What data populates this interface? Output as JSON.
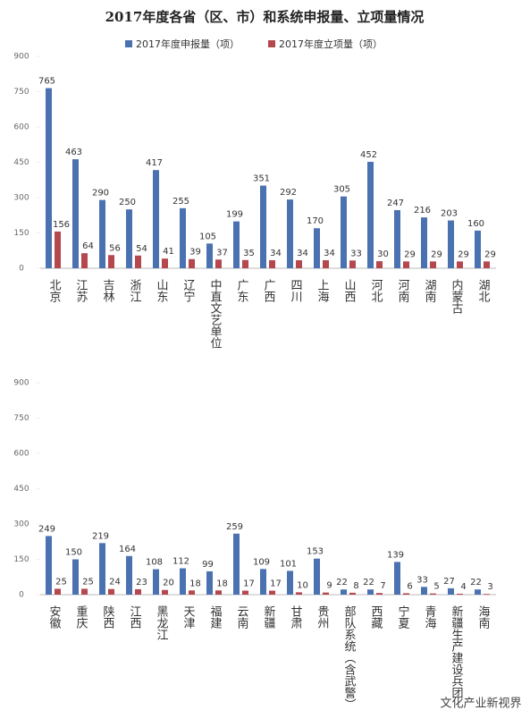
{
  "chart_data": [
    {
      "type": "bar",
      "title": "2017年度各省（区、市）和系统申报量、立项量情况",
      "categories": [
        "北京",
        "江苏",
        "吉林",
        "浙江",
        "山东",
        "辽宁",
        "中直文艺单位",
        "广东",
        "广西",
        "四川",
        "上海",
        "山西",
        "河北",
        "河南",
        "湖南",
        "内蒙古",
        "湖北"
      ],
      "series": [
        {
          "name": "2017年度申报量（项）",
          "color": "#4a72b0",
          "values": [
            765,
            463,
            290,
            250,
            417,
            255,
            105,
            199,
            351,
            292,
            170,
            305,
            452,
            247,
            216,
            203,
            160
          ]
        },
        {
          "name": "2017年度立项量（项）",
          "color": "#b5474f",
          "values": [
            156,
            64,
            56,
            54,
            41,
            39,
            37,
            35,
            34,
            34,
            34,
            33,
            30,
            29,
            29,
            29,
            29
          ]
        }
      ],
      "ylim": [
        0,
        900
      ],
      "yticks": [
        0,
        150,
        300,
        450,
        600,
        750,
        900
      ]
    },
    {
      "type": "bar",
      "categories": [
        "安徽",
        "重庆",
        "陕西",
        "江西",
        "黑龙江",
        "天津",
        "福建",
        "云南",
        "新疆",
        "甘肃",
        "贵州",
        "部队系统（含武警）",
        "西藏",
        "宁夏",
        "青海",
        "新疆生产建设兵团",
        "海南"
      ],
      "series": [
        {
          "color": "#4a72b0",
          "values": [
            249,
            150,
            219,
            164,
            108,
            112,
            99,
            259,
            109,
            101,
            153,
            22,
            22,
            139,
            33,
            27,
            22
          ]
        },
        {
          "color": "#b5474f",
          "values": [
            25,
            25,
            24,
            23,
            20,
            18,
            18,
            17,
            17,
            10,
            9,
            8,
            7,
            6,
            5,
            4,
            3
          ]
        }
      ],
      "ylim": [
        0,
        900
      ],
      "yticks": [
        0,
        150,
        300,
        450,
        600,
        750,
        900
      ]
    }
  ],
  "watermark": "文化产业新视界"
}
